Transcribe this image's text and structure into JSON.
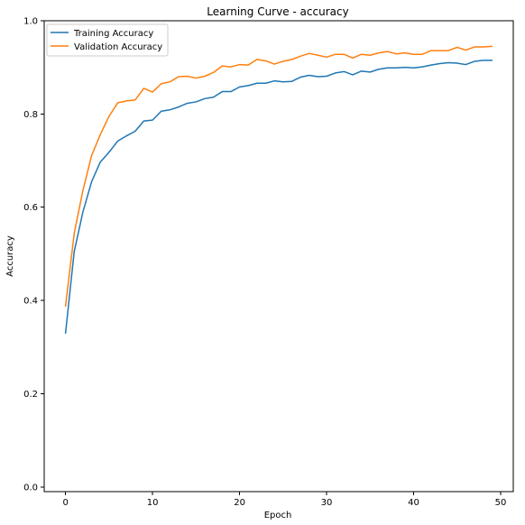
{
  "chart_data": {
    "type": "line",
    "title": "Learning Curve - accuracy",
    "xlabel": "Epoch",
    "ylabel": "Accuracy",
    "xlim": [
      -2.45,
      51.45
    ],
    "ylim": [
      -0.01,
      1.0
    ],
    "xticks": [
      0,
      10,
      20,
      30,
      40,
      50
    ],
    "yticks": [
      0.0,
      0.2,
      0.4,
      0.6,
      0.8,
      1.0
    ],
    "xtick_labels": [
      "0",
      "10",
      "20",
      "30",
      "40",
      "50"
    ],
    "ytick_labels": [
      "0.0",
      "0.2",
      "0.4",
      "0.6",
      "0.8",
      "1.0"
    ],
    "grid": false,
    "legend_position": "top-left",
    "x": [
      0,
      1,
      2,
      3,
      4,
      5,
      6,
      7,
      8,
      9,
      10,
      11,
      12,
      13,
      14,
      15,
      16,
      17,
      18,
      19,
      20,
      21,
      22,
      23,
      24,
      25,
      26,
      27,
      28,
      29,
      30,
      31,
      32,
      33,
      34,
      35,
      36,
      37,
      38,
      39,
      40,
      41,
      42,
      43,
      44,
      45,
      46,
      47,
      48,
      49
    ],
    "series": [
      {
        "name": "Training Accuracy",
        "color": "#1f77b4",
        "values": [
          0.33,
          0.505,
          0.59,
          0.655,
          0.697,
          0.718,
          0.742,
          0.753,
          0.763,
          0.785,
          0.787,
          0.806,
          0.809,
          0.815,
          0.823,
          0.826,
          0.833,
          0.836,
          0.848,
          0.848,
          0.858,
          0.861,
          0.866,
          0.866,
          0.871,
          0.869,
          0.87,
          0.879,
          0.883,
          0.88,
          0.881,
          0.888,
          0.891,
          0.884,
          0.892,
          0.89,
          0.896,
          0.899,
          0.899,
          0.9,
          0.899,
          0.901,
          0.905,
          0.908,
          0.91,
          0.909,
          0.906,
          0.913,
          0.915,
          0.915
        ]
      },
      {
        "name": "Validation Accuracy",
        "color": "#ff7f0e",
        "values": [
          0.388,
          0.544,
          0.636,
          0.711,
          0.756,
          0.795,
          0.824,
          0.828,
          0.83,
          0.855,
          0.847,
          0.865,
          0.869,
          0.88,
          0.881,
          0.877,
          0.881,
          0.889,
          0.903,
          0.901,
          0.906,
          0.905,
          0.917,
          0.914,
          0.907,
          0.913,
          0.917,
          0.924,
          0.93,
          0.926,
          0.922,
          0.928,
          0.928,
          0.92,
          0.928,
          0.926,
          0.931,
          0.934,
          0.929,
          0.931,
          0.928,
          0.928,
          0.936,
          0.936,
          0.936,
          0.943,
          0.937,
          0.944,
          0.944,
          0.945
        ]
      }
    ]
  }
}
